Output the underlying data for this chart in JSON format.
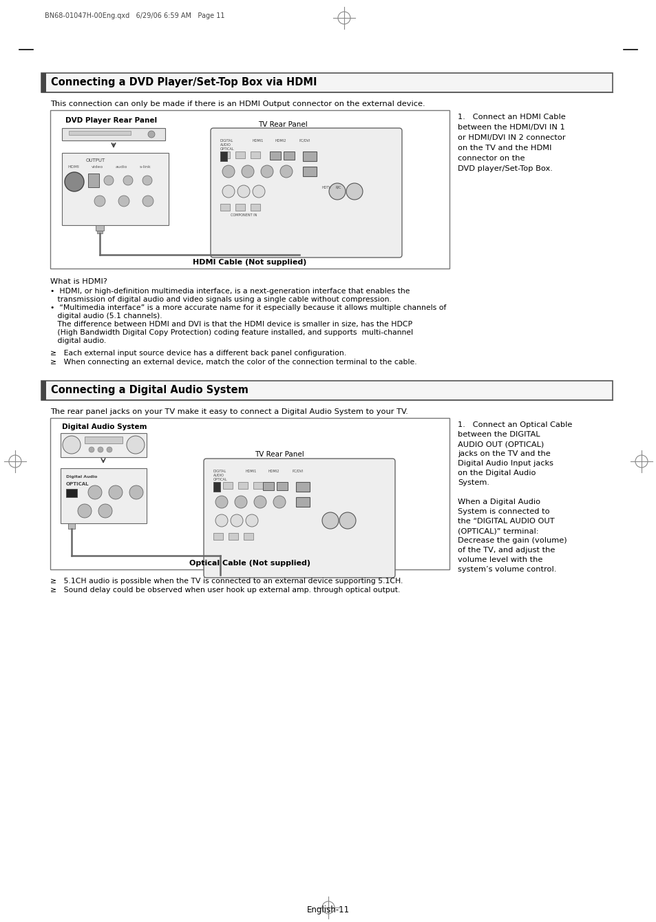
{
  "bg_color": "#ffffff",
  "page_header": "BN68-01047H-00Eng.qxd   6/29/06 6:59 AM   Page 11",
  "section1_title": "Connecting a DVD Player/Set-Top Box via HDMI",
  "section1_subtitle": "This connection can only be made if there is an HDMI Output connector on the external device.",
  "section1_label_dvd": "DVD Player Rear Panel",
  "section1_label_tv": "TV Rear Panel",
  "section1_cable_label": "HDMI Cable (Not supplied)",
  "section1_step1_line1": "1.   Connect an HDMI Cable",
  "section1_step1_line2": "between the HDMI/DVI IN 1",
  "section1_step1_line3": "or HDMI/DVI IN 2 connector",
  "section1_step1_line4": "on the TV and the HDMI",
  "section1_step1_line5": "connector on the",
  "section1_step1_line6": "DVD player/Set-Top Box.",
  "what_is_hdmi": "What is HDMI?",
  "bullet1a": "•  HDMI, or high-definition multimedia interface, is a next-generation interface that enables the",
  "bullet1b": "   transmission of digital audio and video signals using a single cable without compression.",
  "bullet2a": "•  “Multimedia interface” is a more accurate name for it especially because it allows multiple channels of",
  "bullet2b": "   digital audio (5.1 channels).",
  "bullet2c": "   The difference between HDMI and DVI is that the HDMI device is smaller in size, has the HDCP",
  "bullet2d": "   (High Bandwidth Digital Copy Protection) coding feature installed, and supports  multi-channel",
  "bullet2e": "   digital audio.",
  "note1": "≥   Each external input source device has a different back panel configuration.",
  "note2": "≥   When connecting an external device, match the color of the connection terminal to the cable.",
  "section2_title": "Connecting a Digital Audio System",
  "section2_subtitle": "The rear panel jacks on your TV make it easy to connect a Digital Audio System to your TV.",
  "section2_label_das": "Digital Audio System",
  "section2_label_tv": "TV Rear Panel",
  "section2_cable_label": "Optical Cable (Not supplied)",
  "section2_step1_line1": "1.   Connect an Optical Cable",
  "section2_step1_line2": "between the DIGITAL",
  "section2_step1_line3": "AUDIO OUT (OPTICAL)",
  "section2_step1_line4": "jacks on the TV and the",
  "section2_step1_line5": "Digital Audio Input jacks",
  "section2_step1_line6": "on the Digital Audio",
  "section2_step1_line7": "System.",
  "section2_step1_line8": "",
  "section2_step1_line9": "When a Digital Audio",
  "section2_step1_line10": "System is connected to",
  "section2_step1_line11": "the “DIGITAL AUDIO OUT",
  "section2_step1_line12": "(OPTICAL)” terminal:",
  "section2_step1_line13": "Decrease the gain (volume)",
  "section2_step1_line14": "of the TV, and adjust the",
  "section2_step1_line15": "volume level with the",
  "section2_step1_line16": "system’s volume control.",
  "note3": "≥   5.1CH audio is possible when the TV is connected to an external device supporting 5.1CH.",
  "note4": "≥   Sound delay could be observed when user hook up external amp. through optical output.",
  "footer": "English-11"
}
